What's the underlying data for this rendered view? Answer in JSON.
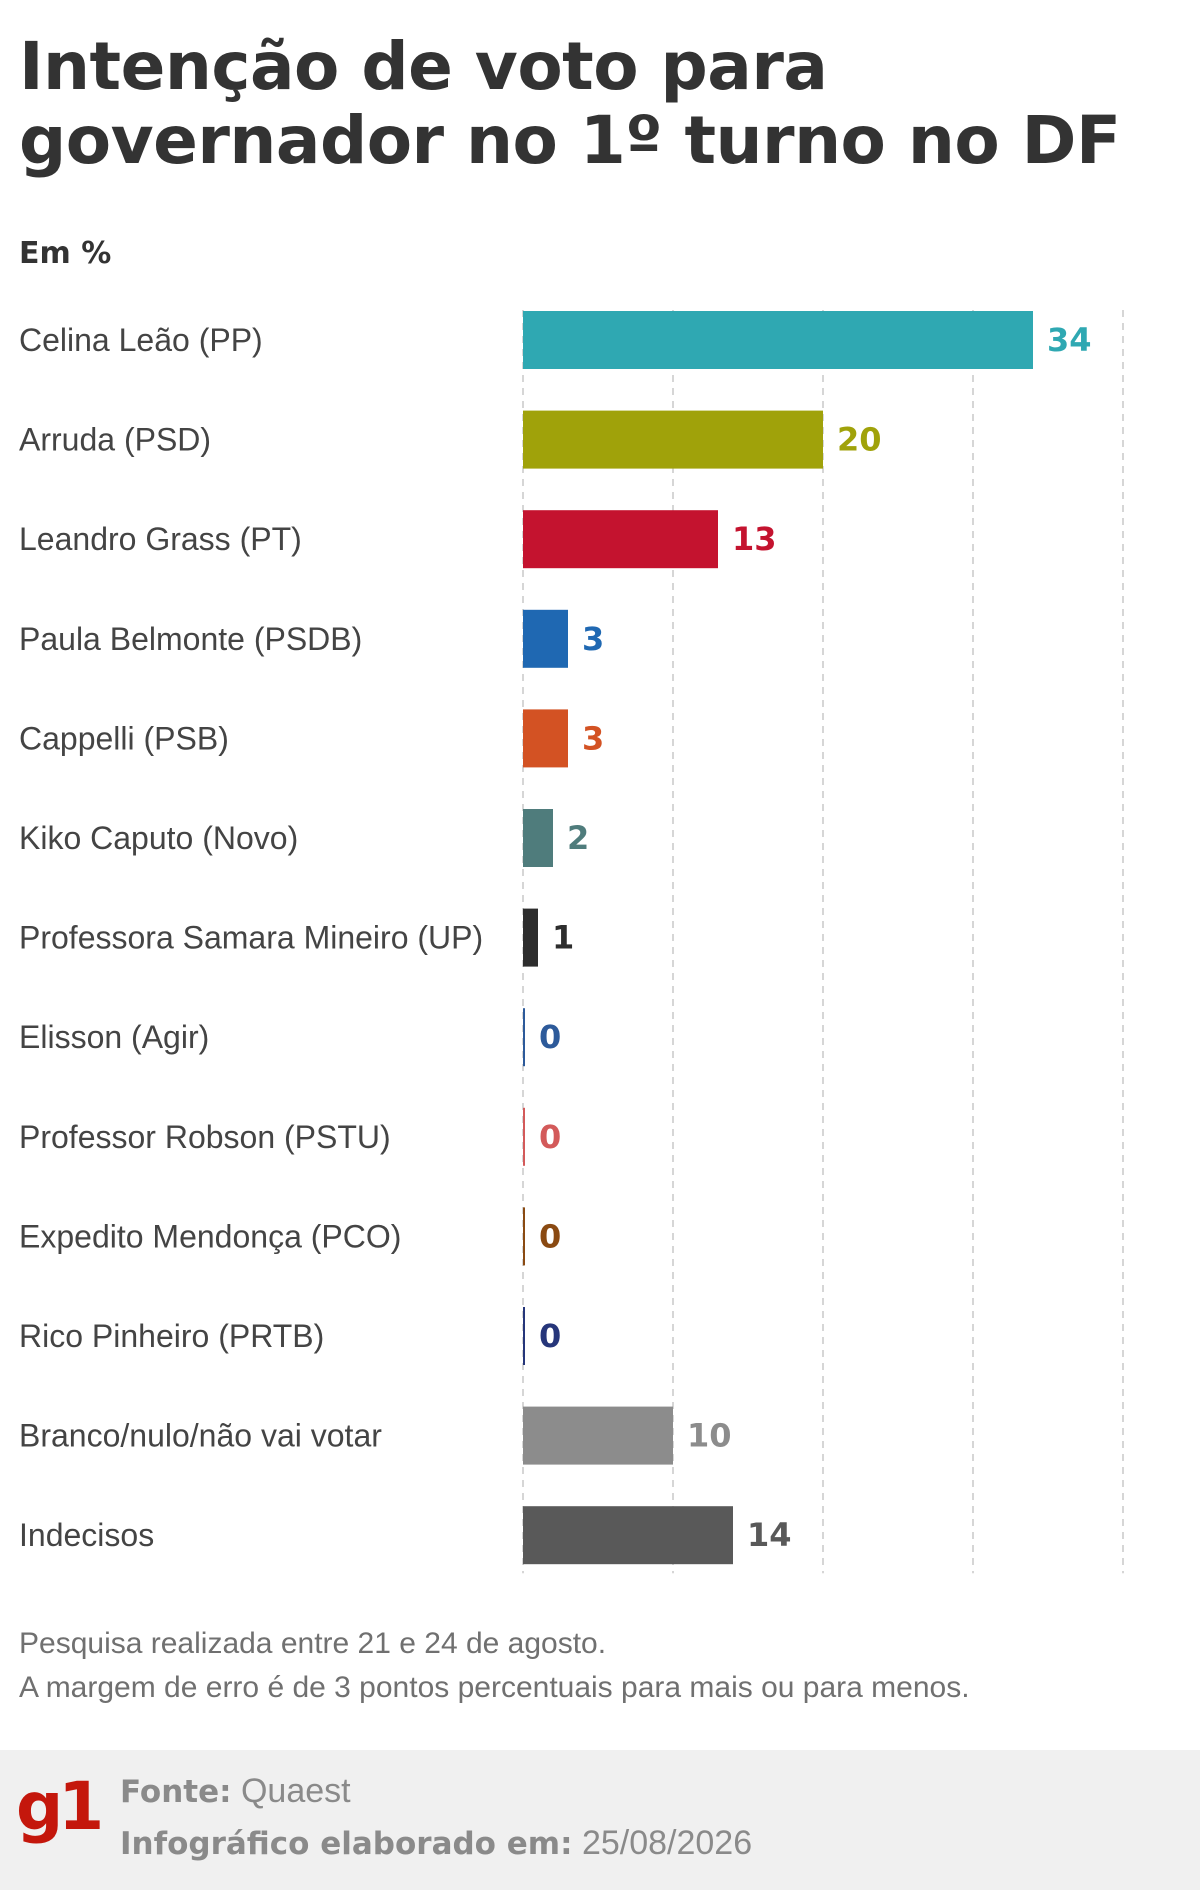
{
  "title": "Intenção de voto para governador no 1º turno no DF",
  "unit_label": "Em %",
  "chart_data": {
    "type": "bar",
    "orientation": "horizontal",
    "xlim": [
      0,
      40
    ],
    "grid": true,
    "categories": [
      "Celina Leão (PP)",
      "Arruda (PSD)",
      "Leandro Grass (PT)",
      "Paula Belmonte (PSDB)",
      "Cappelli (PSB)",
      "Kiko Caputo (Novo)",
      "Professora Samara Mineiro (UP)",
      "Elisson (Agir)",
      "Professor Robson (PSTU)",
      "Expedito Mendonça (PCO)",
      "Rico Pinheiro (PRTB)",
      "Branco/nulo/não vai votar",
      "Indecisos"
    ],
    "values": [
      34,
      20,
      13,
      3,
      3,
      2,
      1,
      0,
      0,
      0,
      0,
      10,
      14
    ],
    "colors": [
      "#2fa8b2",
      "#a0a20a",
      "#c4132f",
      "#1f68b2",
      "#d35223",
      "#4f7c7c",
      "#2d2d2d",
      "#2d5a9a",
      "#d35a5a",
      "#8a4a12",
      "#26367a",
      "#8c8c8c",
      "#595959"
    ],
    "label_colors": [
      "#2fa8b2",
      "#a0a20a",
      "#c4132f",
      "#1f68b2",
      "#d35223",
      "#4f7c7c",
      "#2d2d2d",
      "#2d5a9a",
      "#d35a5a",
      "#8a4a12",
      "#26367a",
      "#8c8c8c",
      "#595959"
    ]
  },
  "notes": [
    "Pesquisa realizada entre 21 e 24 de agosto.",
    "A margem de erro é de 3 pontos percentuais para mais ou para menos."
  ],
  "footer": {
    "logo": "g1",
    "source_key": "Fonte:",
    "source_value": "Quaest",
    "date_key": "Infográfico elaborado em:",
    "date_value": "25/08/2026"
  }
}
